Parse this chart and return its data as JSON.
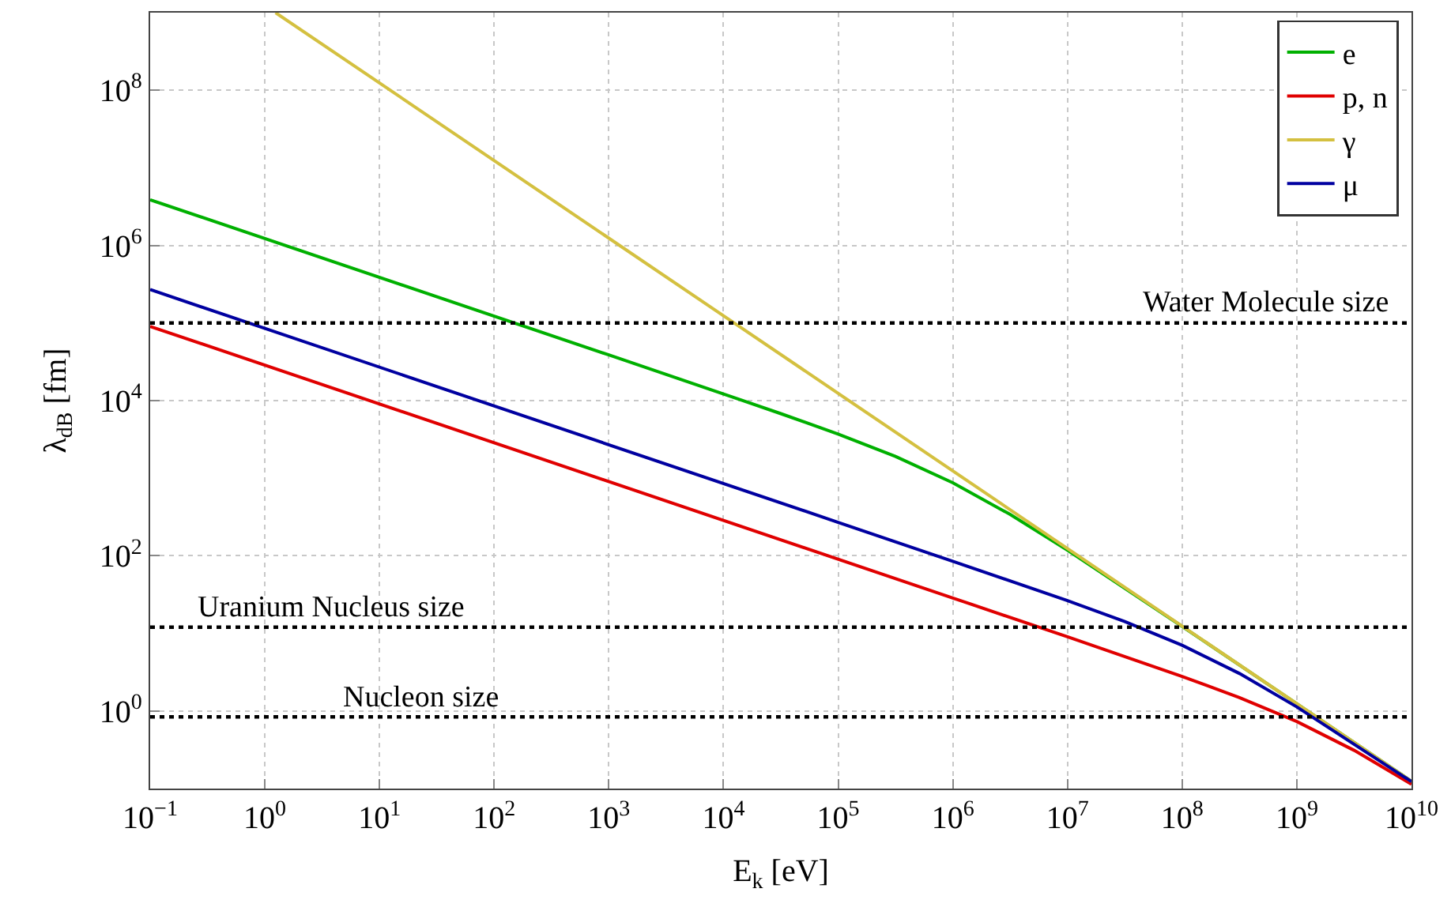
{
  "chart_data": {
    "type": "line",
    "xlabel": "E$_{k}$ [eV]",
    "ylabel": "λ$_{dB}$ [fm]",
    "log": "xy",
    "grid": true,
    "legend": "top right",
    "line_style": "solid",
    "marker": "none",
    "xlim": [
      0.1,
      10000000000.0
    ],
    "ylim": [
      0.1,
      1000000000.0
    ],
    "xticks": [
      {
        "value": 0.1,
        "label": "10$^{−1}$"
      },
      {
        "value": 1,
        "label": "10$^{0}$"
      },
      {
        "value": 10,
        "label": "10$^{1}$"
      },
      {
        "value": 100,
        "label": "10$^{2}$"
      },
      {
        "value": 1000,
        "label": "10$^{3}$"
      },
      {
        "value": 10000,
        "label": "10$^{4}$"
      },
      {
        "value": 100000,
        "label": "10$^{5}$"
      },
      {
        "value": 1000000,
        "label": "10$^{6}$"
      },
      {
        "value": 10000000,
        "label": "10$^{7}$"
      },
      {
        "value": 100000000,
        "label": "10$^{8}$"
      },
      {
        "value": 1000000000,
        "label": "10$^{9}$"
      },
      {
        "value": 10000000000,
        "label": "10$^{10}$"
      }
    ],
    "yticks": [
      {
        "value": 1,
        "label": "10$^{0}$"
      },
      {
        "value": 100,
        "label": "10$^{2}$"
      },
      {
        "value": 10000,
        "label": "10$^{4}$"
      },
      {
        "value": 1000000,
        "label": "10$^{6}$"
      },
      {
        "value": 100000000,
        "label": "10$^{8}$"
      }
    ],
    "series": [
      {
        "name": "e",
        "color": "#00b000",
        "x": [
          0.1,
          1000,
          10000,
          31620,
          100000,
          316200,
          1000000,
          3162000,
          10000000,
          100000000,
          1000000000,
          10000000000
        ],
        "values": [
          3878000,
          38760,
          12200,
          6793,
          3701,
          1906,
          872,
          341,
          118,
          12.3,
          1.24,
          0.124
        ]
      },
      {
        "name": "p, n",
        "color": "#e00000",
        "x": [
          0.1,
          1000000,
          10000000,
          100000000,
          316200000,
          1000000000,
          3162000000,
          10000000000
        ],
        "values": [
          90510,
          28.6,
          9.03,
          2.79,
          1.49,
          0.731,
          0.311,
          0.114
        ]
      },
      {
        "name": "γ",
        "color": "#d4c040",
        "x": [
          1.24,
          10000,
          10000000000
        ],
        "values": [
          1000000000,
          124000,
          0.124
        ]
      },
      {
        "name": "μ",
        "color": "#0000a0",
        "x": [
          0.1,
          100000,
          1000000,
          10000000,
          31620000,
          100000000,
          316200000,
          1000000000,
          10000000000
        ],
        "values": [
          269700,
          270,
          85.1,
          26.4,
          14.2,
          7.03,
          3.04,
          1.13,
          0.123
        ]
      }
    ],
    "ref_lines": [
      {
        "axis": "y",
        "value": 100000,
        "label": "Water Molecule size",
        "color": "#000000",
        "line_style": "dotted"
      },
      {
        "axis": "y",
        "value": 12,
        "label": "Uranium Nucleus size",
        "color": "#000000",
        "line_style": "dotted"
      },
      {
        "axis": "y",
        "value": 0.84,
        "label": "Nucleon size",
        "color": "#000000",
        "line_style": "dotted"
      }
    ]
  }
}
